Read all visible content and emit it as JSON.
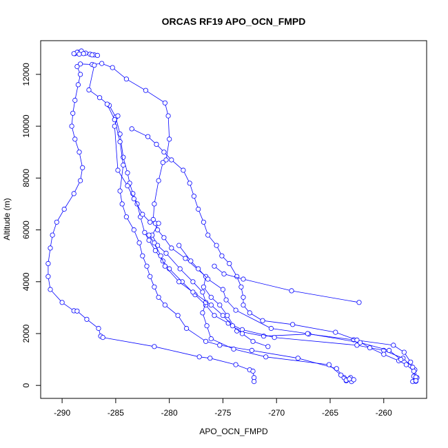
{
  "chart_data": {
    "type": "line",
    "title": "ORCAS RF19 APO_OCN_FMPD",
    "xlabel": "APO_OCN_FMPD",
    "ylabel": "Altitude (m)",
    "xlim": [
      -292,
      -256
    ],
    "ylim": [
      -500,
      13300
    ],
    "x_ticks": [
      -290,
      -285,
      -280,
      -275,
      -270,
      -265,
      -260
    ],
    "y_ticks": [
      0,
      2000,
      4000,
      6000,
      8000,
      10000,
      12000
    ],
    "x_tick_labels": [
      "-290",
      "-285",
      "-280",
      "-275",
      "-270",
      "-265",
      "-260"
    ],
    "y_tick_labels": [
      "0",
      "2000",
      "4000",
      "6000",
      "8000",
      "10000",
      "12000"
    ],
    "grid": false,
    "marker": "open-circle",
    "line_style": "solid",
    "color": "#0000ff",
    "series": [
      {
        "points": [
          [
            -288.8,
            12800
          ],
          [
            -288.5,
            12850
          ],
          [
            -288.2,
            12900
          ],
          [
            -287.8,
            12820
          ],
          [
            -287.4,
            12780
          ],
          [
            -287.0,
            12750
          ],
          [
            -286.7,
            12730
          ],
          [
            -287.2,
            12750
          ],
          [
            -288.0,
            12800
          ],
          [
            -288.6,
            12850
          ],
          [
            -288.9,
            12800
          ],
          [
            -288.4,
            12780
          ]
        ]
      },
      {
        "points": [
          [
            -288.6,
            12300
          ],
          [
            -288.3,
            12000
          ],
          [
            -288.5,
            11600
          ],
          [
            -288.8,
            11000
          ],
          [
            -289.0,
            10500
          ],
          [
            -289.1,
            10000
          ],
          [
            -288.8,
            9500
          ],
          [
            -288.4,
            9000
          ],
          [
            -288.1,
            8400
          ],
          [
            -288.3,
            7900
          ],
          [
            -288.9,
            7400
          ],
          [
            -289.8,
            6800
          ],
          [
            -290.5,
            6300
          ],
          [
            -290.9,
            5800
          ],
          [
            -291.1,
            5300
          ],
          [
            -291.3,
            4700
          ],
          [
            -291.3,
            4200
          ],
          [
            -291.1,
            3700
          ],
          [
            -290.0,
            3200
          ],
          [
            -288.9,
            2880
          ],
          [
            -288.6,
            2870
          ],
          [
            -287.7,
            2550
          ],
          [
            -286.6,
            2200
          ],
          [
            -286.4,
            1900
          ],
          [
            -286.2,
            1850
          ],
          [
            -281.4,
            1500
          ],
          [
            -277.2,
            1100
          ],
          [
            -276.2,
            1050
          ],
          [
            -273.8,
            800
          ],
          [
            -272.5,
            600
          ],
          [
            -272.2,
            550
          ],
          [
            -272.1,
            300
          ],
          [
            -272.1,
            150
          ]
        ]
      },
      {
        "points": [
          [
            -288.3,
            12400
          ],
          [
            -287.2,
            12380
          ],
          [
            -286.3,
            12420
          ],
          [
            -285.3,
            12260
          ],
          [
            -284.0,
            11820
          ],
          [
            -282.2,
            11380
          ],
          [
            -280.4,
            10900
          ],
          [
            -280.1,
            10400
          ],
          [
            -280.0,
            9500
          ],
          [
            -280.3,
            8700
          ],
          [
            -280.6,
            8600
          ],
          [
            -281.0,
            7900
          ],
          [
            -281.4,
            7000
          ],
          [
            -281.5,
            6400
          ],
          [
            -281.1,
            6000
          ],
          [
            -280.5,
            5700
          ],
          [
            -279.8,
            5300
          ],
          [
            -278.5,
            4900
          ],
          [
            -276.6,
            4200
          ],
          [
            -276.8,
            3800
          ],
          [
            -276.1,
            3400
          ],
          [
            -275.3,
            3100
          ],
          [
            -274.6,
            2700
          ],
          [
            -273.7,
            2100
          ],
          [
            -271.2,
            1900
          ],
          [
            -267.0,
            1980
          ],
          [
            -262.8,
            1760
          ],
          [
            -259.1,
            1550
          ],
          [
            -258.1,
            1280
          ],
          [
            -257.5,
            900
          ],
          [
            -257.1,
            600
          ],
          [
            -256.9,
            300
          ],
          [
            -257.1,
            180
          ]
        ]
      },
      {
        "points": [
          [
            -287.0,
            12350
          ],
          [
            -287.5,
            11400
          ],
          [
            -286.5,
            11100
          ],
          [
            -285.6,
            10800
          ],
          [
            -285.0,
            10350
          ],
          [
            -284.6,
            9700
          ],
          [
            -284.3,
            8800
          ],
          [
            -283.9,
            8200
          ],
          [
            -283.7,
            7800
          ],
          [
            -283.4,
            7400
          ],
          [
            -283.0,
            7000
          ],
          [
            -282.7,
            6500
          ],
          [
            -282.3,
            5900
          ],
          [
            -281.9,
            5600
          ],
          [
            -281.3,
            5200
          ],
          [
            -280.6,
            4800
          ],
          [
            -280.0,
            4500
          ],
          [
            -278.8,
            4000
          ],
          [
            -277.6,
            3500
          ],
          [
            -276.6,
            3100
          ],
          [
            -275.8,
            2700
          ],
          [
            -274.5,
            2400
          ],
          [
            -273.2,
            2150
          ],
          [
            -270.2,
            1850
          ],
          [
            -262.5,
            1550
          ],
          [
            -260.0,
            1350
          ],
          [
            -258.2,
            1050
          ],
          [
            -257.3,
            700
          ],
          [
            -257.2,
            350
          ],
          [
            -257.3,
            150
          ],
          [
            -257.0,
            160
          ]
        ]
      },
      {
        "points": [
          [
            -285.8,
            10850
          ],
          [
            -285.1,
            10250
          ],
          [
            -284.6,
            9400
          ],
          [
            -284.3,
            8500
          ],
          [
            -284.6,
            7500
          ],
          [
            -284.4,
            7000
          ],
          [
            -284.0,
            6500
          ],
          [
            -283.3,
            6000
          ],
          [
            -282.8,
            5500
          ],
          [
            -282.5,
            5000
          ],
          [
            -282.1,
            4600
          ],
          [
            -281.8,
            4200
          ],
          [
            -281.4,
            3800
          ],
          [
            -281.0,
            3400
          ],
          [
            -280.4,
            3100
          ],
          [
            -279.2,
            2700
          ],
          [
            -278.4,
            2200
          ],
          [
            -276.6,
            1700
          ],
          [
            -275.3,
            1550
          ],
          [
            -272.3,
            1350
          ],
          [
            -268.0,
            1050
          ],
          [
            -264.4,
            650
          ],
          [
            -263.7,
            300
          ],
          [
            -263.5,
            180
          ],
          [
            -263.0,
            150
          ],
          [
            -263.1,
            300
          ],
          [
            -263.5,
            200
          ]
        ]
      },
      {
        "points": [
          [
            -283.5,
            9900
          ],
          [
            -282.0,
            9600
          ],
          [
            -281.2,
            9300
          ],
          [
            -280.5,
            9000
          ],
          [
            -279.8,
            8700
          ],
          [
            -278.7,
            8300
          ],
          [
            -278.1,
            7800
          ],
          [
            -277.7,
            7300
          ],
          [
            -277.3,
            6800
          ],
          [
            -276.8,
            6300
          ],
          [
            -276.4,
            5800
          ],
          [
            -275.6,
            5400
          ],
          [
            -275.1,
            5000
          ],
          [
            -274.4,
            4700
          ],
          [
            -273.7,
            4200
          ],
          [
            -273.3,
            3800
          ],
          [
            -273.1,
            3400
          ],
          [
            -273.1,
            3100
          ],
          [
            -272.5,
            2800
          ],
          [
            -271.3,
            2500
          ],
          [
            -268.5,
            2350
          ],
          [
            -264.5,
            2050
          ],
          [
            -262.5,
            1750
          ],
          [
            -261.3,
            1450
          ],
          [
            -260.0,
            1200
          ],
          [
            -258.6,
            950
          ],
          [
            -257.9,
            800
          ],
          [
            -257.2,
            550
          ],
          [
            -257.0,
            320
          ],
          [
            -257.0,
            180
          ]
        ]
      },
      {
        "points": [
          [
            -284.8,
            10400
          ],
          [
            -285.1,
            10000
          ],
          [
            -284.8,
            8300
          ],
          [
            -283.9,
            7700
          ],
          [
            -283.3,
            7200
          ],
          [
            -282.5,
            6600
          ],
          [
            -281.8,
            6300
          ],
          [
            -281.3,
            6250
          ],
          [
            -281.0,
            6250
          ],
          [
            -281.6,
            5800
          ],
          [
            -281.1,
            5400
          ],
          [
            -280.3,
            5100
          ],
          [
            -279.0,
            4500
          ],
          [
            -277.8,
            4000
          ],
          [
            -276.9,
            3600
          ],
          [
            -276.6,
            3200
          ],
          [
            -276.9,
            2800
          ],
          [
            -276.5,
            2300
          ],
          [
            -276.1,
            1800
          ],
          [
            -274.0,
            1400
          ],
          [
            -271.0,
            1100
          ],
          [
            -265.1,
            800
          ],
          [
            -264.0,
            400
          ],
          [
            -263.2,
            250
          ],
          [
            -262.8,
            220
          ]
        ]
      },
      {
        "points": [
          [
            -281.9,
            5800
          ],
          [
            -281.4,
            5500
          ],
          [
            -280.8,
            5000
          ],
          [
            -280.4,
            4600
          ],
          [
            -279.1,
            4000
          ],
          [
            -277.8,
            3600
          ],
          [
            -276.1,
            3100
          ],
          [
            -275.0,
            2700
          ],
          [
            -274.1,
            2300
          ],
          [
            -273.2,
            2000
          ],
          [
            -272.2,
            1700
          ],
          [
            -270.8,
            1500
          ]
        ]
      },
      {
        "points": [
          [
            -279.1,
            5400
          ],
          [
            -278.0,
            4800
          ],
          [
            -277.3,
            4500
          ],
          [
            -276.4,
            4100
          ],
          [
            -275.0,
            3700
          ],
          [
            -274.7,
            3300
          ],
          [
            -273.8,
            2900
          ],
          [
            -270.5,
            2200
          ],
          [
            -267.1,
            2000
          ],
          [
            -262.2,
            1650
          ],
          [
            -259.5,
            1350
          ],
          [
            -258.4,
            1000
          ]
        ]
      },
      {
        "points": [
          [
            -275.8,
            4600
          ],
          [
            -274.9,
            4300
          ],
          [
            -273.1,
            4100
          ],
          [
            -268.6,
            3650
          ],
          [
            -262.3,
            3200
          ]
        ]
      }
    ]
  }
}
